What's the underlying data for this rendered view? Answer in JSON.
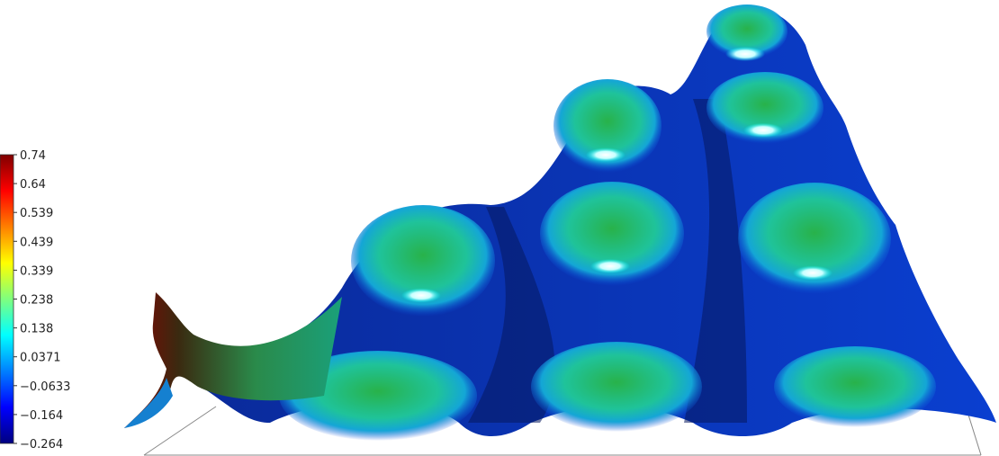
{
  "chart_data": {
    "type": "heatmap",
    "title": "",
    "xlabel": "",
    "ylabel": "",
    "colorbar": {
      "min": -0.264,
      "max": 0.74,
      "tick_labels": [
        "0.74",
        "0.64",
        "0.539",
        "0.439",
        "0.339",
        "0.238",
        "0.138",
        "0.0371",
        "−0.0633",
        "−0.164",
        "−0.264"
      ],
      "colormap": "jet"
    },
    "surface": {
      "description_kind": "3d-surface",
      "bumps": [
        {
          "row": 0,
          "col": 0,
          "value": 0.26
        },
        {
          "row": 0,
          "col": 1,
          "value": 0.26
        },
        {
          "row": 1,
          "col": 0,
          "value": 0.24
        },
        {
          "row": 1,
          "col": 1,
          "value": 0.26
        },
        {
          "row": 1,
          "col": 2,
          "value": 0.26
        },
        {
          "row": 2,
          "col": 0,
          "value": 0.24
        },
        {
          "row": 2,
          "col": 1,
          "value": 0.24
        },
        {
          "row": 2,
          "col": 2,
          "value": 0.24
        }
      ],
      "valley_value": -0.264,
      "peak_value": 0.74
    }
  }
}
